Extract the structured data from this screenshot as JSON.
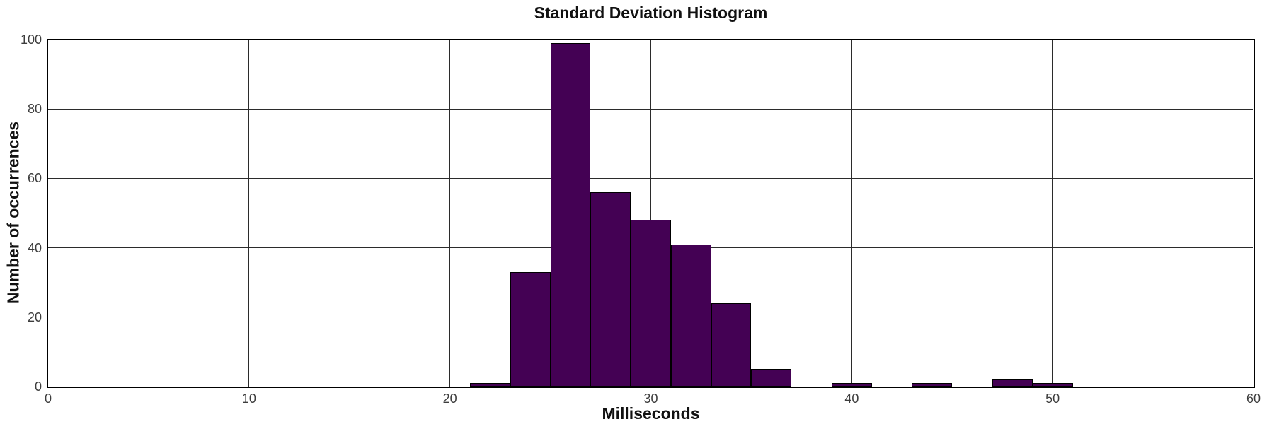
{
  "title": "Standard Deviation Histogram",
  "chart_data": {
    "type": "bar",
    "subtype": "histogram",
    "title": "Standard Deviation Histogram",
    "xlabel": "Milliseconds",
    "ylabel": "Number of occurrences",
    "xlim": [
      0,
      60
    ],
    "ylim": [
      0,
      100
    ],
    "xticks": [
      0,
      10,
      20,
      30,
      40,
      50,
      60
    ],
    "yticks": [
      0,
      20,
      40,
      60,
      80,
      100
    ],
    "grid": true,
    "legend": false,
    "bin_width": 2,
    "bins": [
      {
        "x0": 21,
        "x1": 23,
        "count": 1
      },
      {
        "x0": 23,
        "x1": 25,
        "count": 33
      },
      {
        "x0": 25,
        "x1": 27,
        "count": 99
      },
      {
        "x0": 27,
        "x1": 29,
        "count": 56
      },
      {
        "x0": 29,
        "x1": 31,
        "count": 48
      },
      {
        "x0": 31,
        "x1": 33,
        "count": 41
      },
      {
        "x0": 33,
        "x1": 35,
        "count": 24
      },
      {
        "x0": 35,
        "x1": 37,
        "count": 5
      },
      {
        "x0": 37,
        "x1": 39,
        "count": 0
      },
      {
        "x0": 39,
        "x1": 41,
        "count": 1
      },
      {
        "x0": 41,
        "x1": 43,
        "count": 0
      },
      {
        "x0": 43,
        "x1": 45,
        "count": 1
      },
      {
        "x0": 45,
        "x1": 47,
        "count": 0
      },
      {
        "x0": 47,
        "x1": 49,
        "count": 2
      },
      {
        "x0": 49,
        "x1": 51,
        "count": 1
      }
    ],
    "colors": {
      "bar_fill": "#440154",
      "bar_edge": "#000000",
      "grid": "#2b2b2b",
      "axis": "#000000",
      "tick_labels": "#3d3d3d",
      "text": "#111111",
      "background": "#ffffff"
    }
  }
}
